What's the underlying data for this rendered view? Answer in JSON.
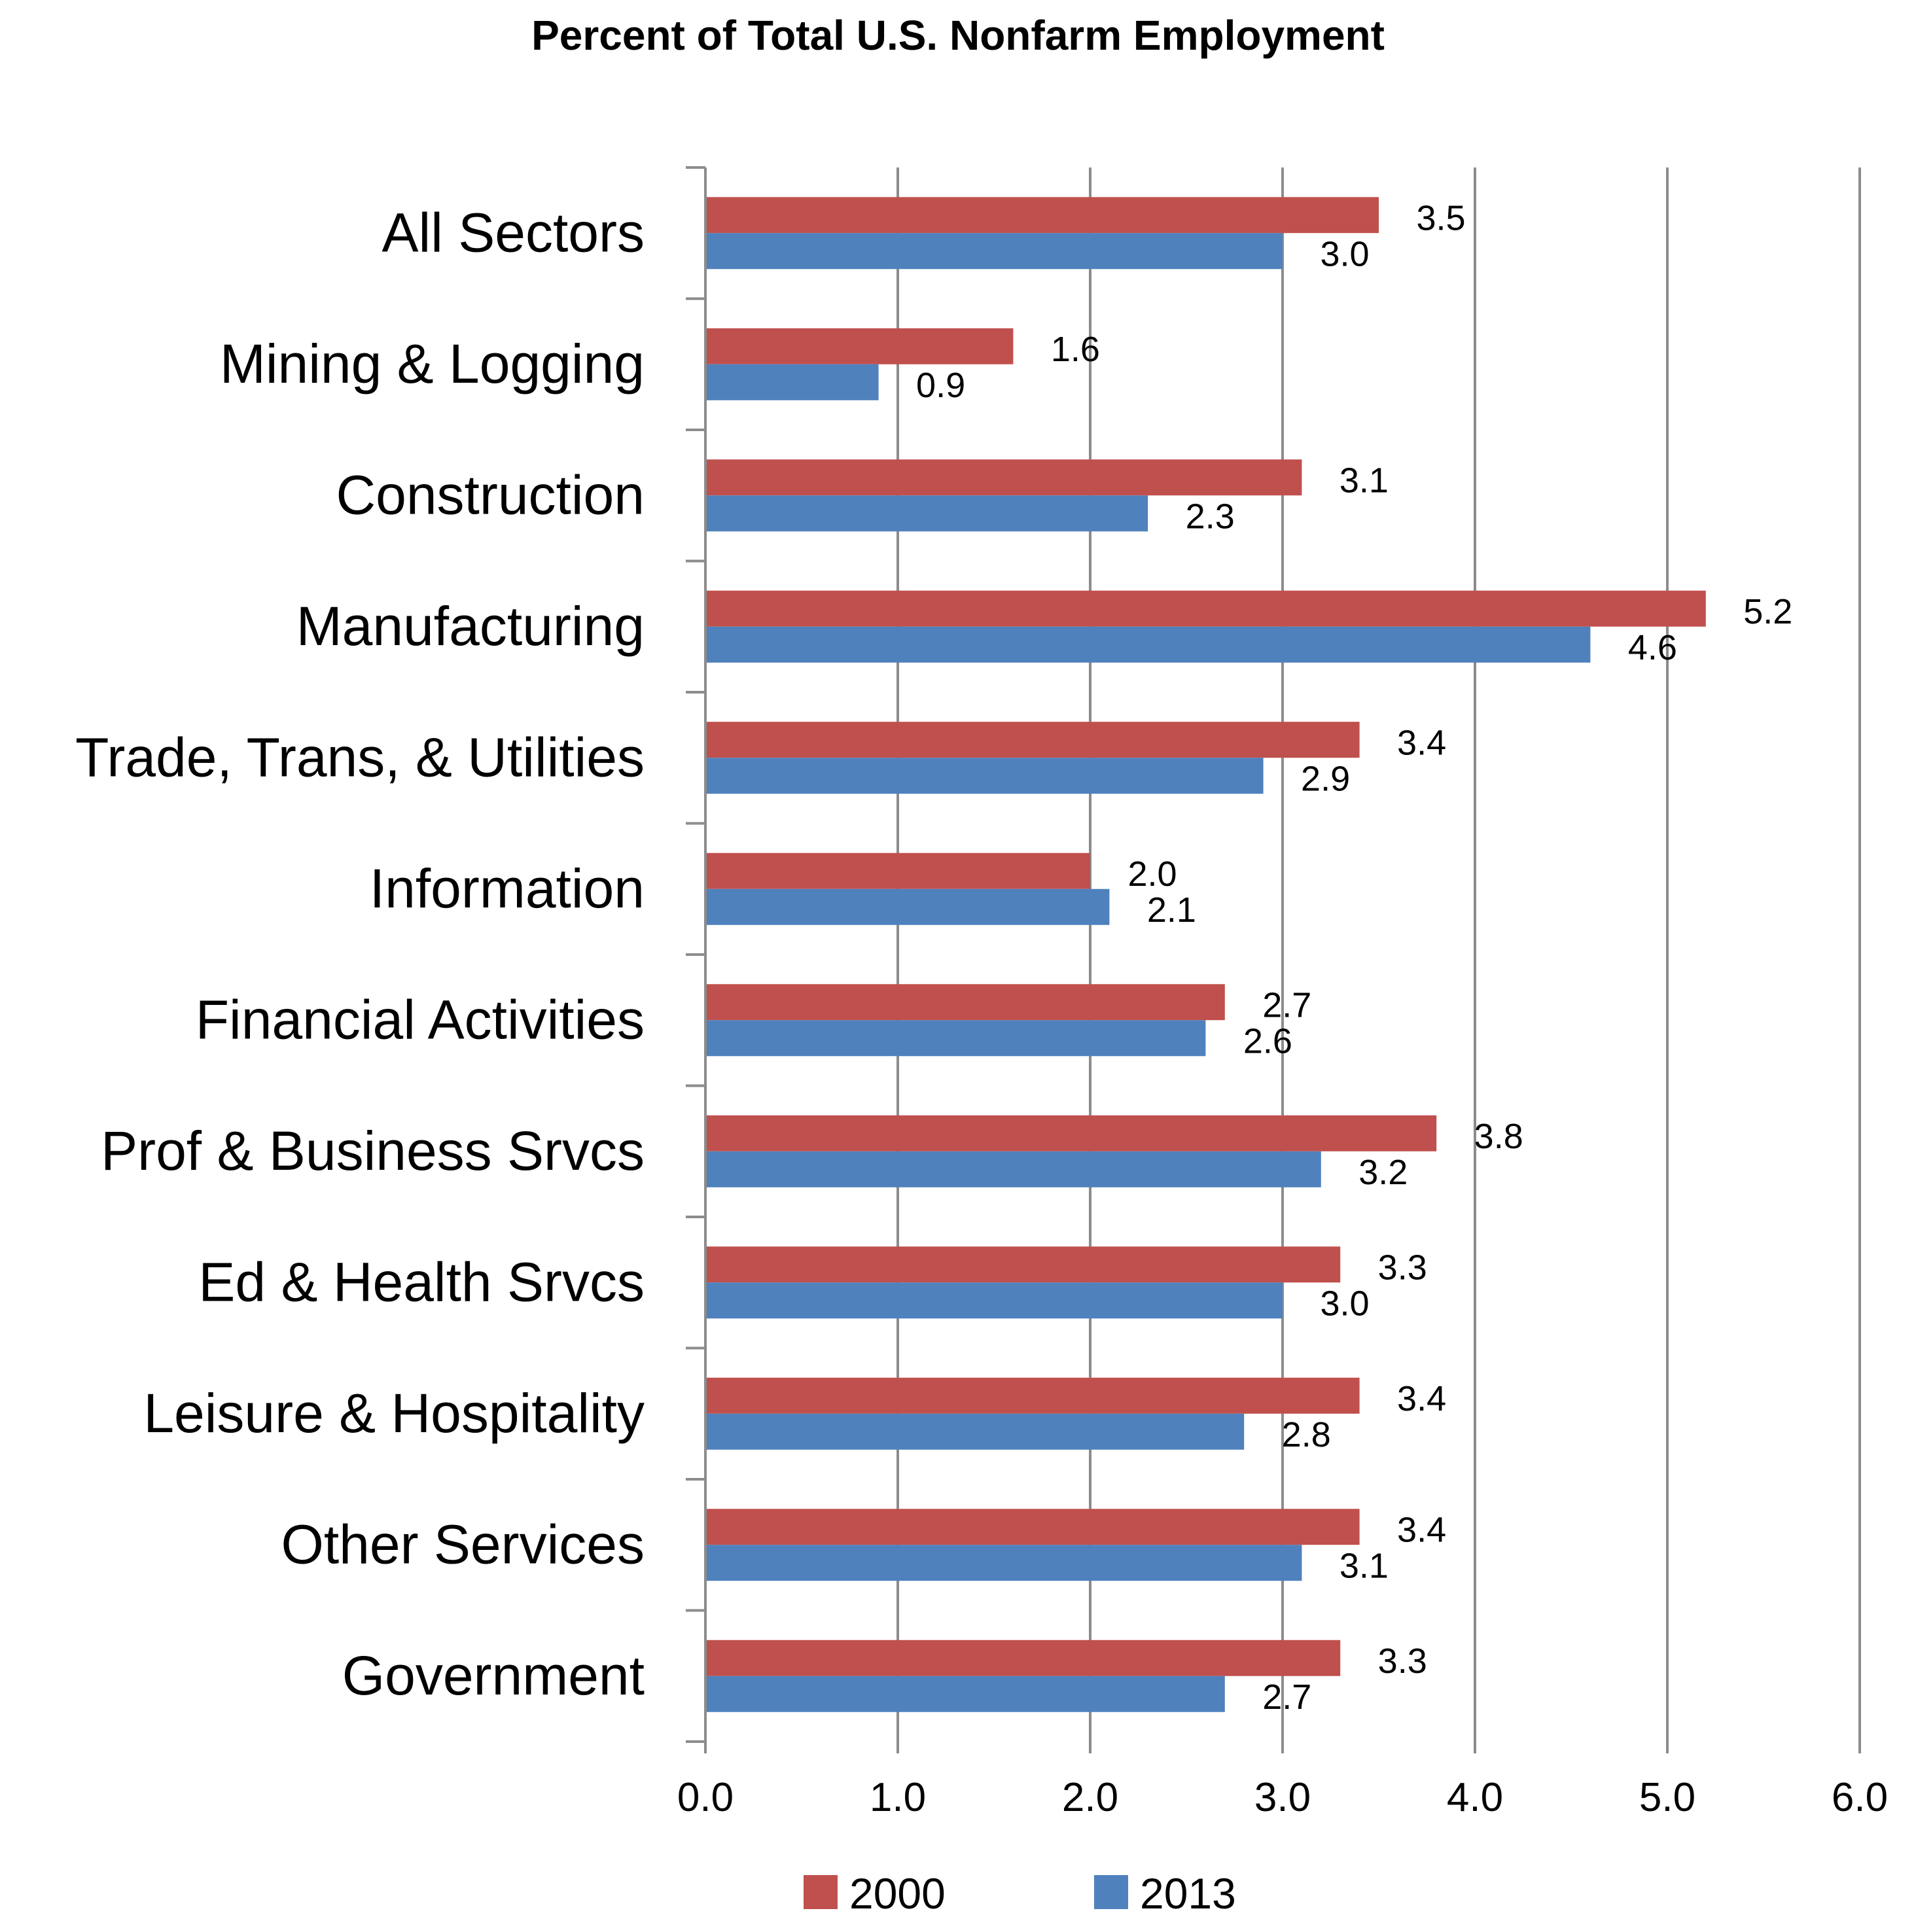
{
  "chart_data": {
    "type": "bar",
    "orientation": "horizontal",
    "title": "Percent of Total U.S. Nonfarm Employment",
    "xlabel": "",
    "ylabel": "",
    "categories": [
      "All Sectors",
      "Mining & Logging",
      "Construction",
      "Manufacturing",
      "Trade, Trans, & Utilities",
      "Information",
      "Financial Activities",
      "Prof & Business Srvcs",
      "Ed & Health Srvcs",
      "Leisure & Hospitality",
      "Other Services",
      "Government"
    ],
    "series": [
      {
        "name": "2000",
        "color": "#C0504D",
        "values": [
          3.5,
          1.6,
          3.1,
          5.2,
          3.4,
          2.0,
          2.7,
          3.8,
          3.3,
          3.4,
          3.4,
          3.3
        ],
        "labels": [
          "3.5",
          "1.6",
          "3.1",
          "5.2",
          "3.4",
          "2.0",
          "2.7",
          "3.8",
          "3.3",
          "3.4",
          "3.4",
          "3.3"
        ]
      },
      {
        "name": "2013",
        "color": "#4F81BD",
        "values": [
          3.0,
          0.9,
          2.3,
          4.6,
          2.9,
          2.1,
          2.6,
          3.2,
          3.0,
          2.8,
          3.1,
          2.7
        ],
        "labels": [
          "3.0",
          "0.9",
          "2.3",
          "4.6",
          "2.9",
          "2.1",
          "2.6",
          "3.2",
          "3.0",
          "2.8",
          "3.1",
          "2.7"
        ]
      }
    ],
    "xlim": [
      0,
      6
    ],
    "xticks": [
      "0.0",
      "1.0",
      "2.0",
      "3.0",
      "4.0",
      "5.0",
      "6.0"
    ],
    "grid": "vertical",
    "legend": "bottom"
  }
}
